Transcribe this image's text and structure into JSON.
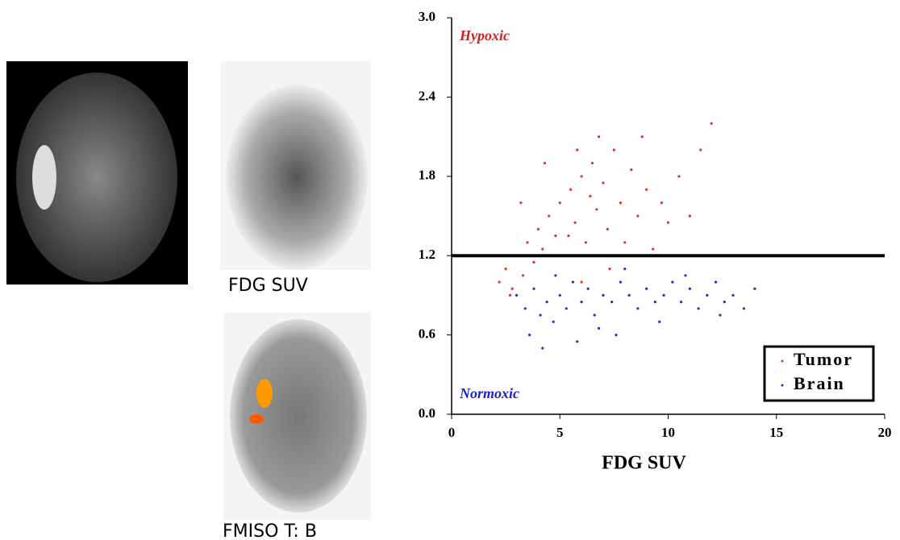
{
  "panels": [
    {
      "caption": "FDG SUV"
    },
    {
      "caption": "FMISO T: B"
    }
  ],
  "chart_data": {
    "type": "scatter",
    "xlabel": "FDG SUV",
    "annotations": [
      {
        "text": "Hypoxic",
        "color": "#d42020"
      },
      {
        "text": "Normoxic",
        "color": "#2020c8"
      }
    ],
    "hline": 1.2,
    "xlim": [
      0,
      20
    ],
    "xticks": [
      0,
      5,
      10,
      15,
      20
    ],
    "ylim": [
      0,
      3
    ],
    "yticks": [
      {
        "value": 0,
        "label": "0.0"
      },
      0.6,
      1.2,
      1.8,
      2.4,
      {
        "value": 3,
        "label": "3.0"
      }
    ],
    "legend": "lower right",
    "series": [
      {
        "name": "Tumor",
        "color": "#e03030",
        "x": [
          2.2,
          2.5,
          2.8,
          3.0,
          3.3,
          3.5,
          3.8,
          4.0,
          4.2,
          4.5,
          4.8,
          5.0,
          5.2,
          5.5,
          5.7,
          6.0,
          6.2,
          6.5,
          6.7,
          7.0,
          7.2,
          7.5,
          7.8,
          8.0,
          8.3,
          8.6,
          9.0,
          9.3,
          9.7,
          10.0,
          10.5,
          11.0,
          11.5,
          12.0,
          6.8,
          5.8,
          4.3,
          3.2,
          7.3,
          6.0,
          8.8,
          7.9,
          2.7,
          5.4,
          6.4
        ],
        "y": [
          1.0,
          1.1,
          0.95,
          1.2,
          1.05,
          1.3,
          1.15,
          1.4,
          1.25,
          1.5,
          1.35,
          1.6,
          1.2,
          1.7,
          1.45,
          1.8,
          1.3,
          1.9,
          1.55,
          1.75,
          1.4,
          2.0,
          1.6,
          1.3,
          1.85,
          1.5,
          1.7,
          1.25,
          1.6,
          1.45,
          1.8,
          1.5,
          2.0,
          2.2,
          2.1,
          2.0,
          1.9,
          1.6,
          1.1,
          1.0,
          2.1,
          1.2,
          0.9,
          1.35,
          1.65
        ]
      },
      {
        "name": "Brain",
        "color": "#2a2ad0",
        "x": [
          3.0,
          3.4,
          3.8,
          4.1,
          4.4,
          4.7,
          5.0,
          5.3,
          5.6,
          6.0,
          6.3,
          6.6,
          7.0,
          7.4,
          7.8,
          8.2,
          8.6,
          9.0,
          9.4,
          9.8,
          10.2,
          10.6,
          11.0,
          11.4,
          11.8,
          12.2,
          12.6,
          13.0,
          13.5,
          14.0,
          3.6,
          4.8,
          6.8,
          8.0,
          9.6,
          10.8,
          5.8,
          12.4,
          7.6,
          4.2
        ],
        "y": [
          0.9,
          0.8,
          0.95,
          0.75,
          0.85,
          0.7,
          0.9,
          0.8,
          1.0,
          0.85,
          0.95,
          0.75,
          0.9,
          0.85,
          1.0,
          0.9,
          0.8,
          0.95,
          0.85,
          0.9,
          1.0,
          0.85,
          0.95,
          0.8,
          0.9,
          1.0,
          0.85,
          0.9,
          0.8,
          0.95,
          0.6,
          1.05,
          0.65,
          1.1,
          0.7,
          1.05,
          0.55,
          0.75,
          0.6,
          0.5
        ]
      }
    ]
  }
}
